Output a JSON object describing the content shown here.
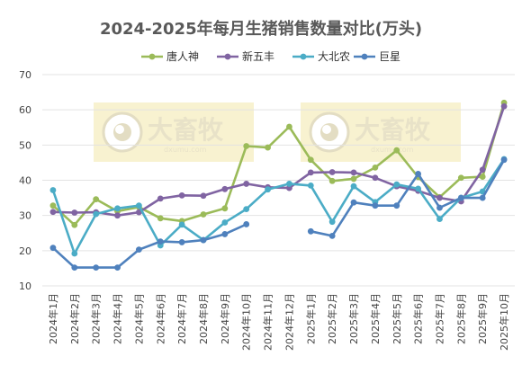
{
  "chart_data": {
    "type": "line",
    "title": "2024-2025年每月生猪销售数量对比(万头)",
    "categories": [
      "2024年1月",
      "2024年2月",
      "2024年3月",
      "2024年4月",
      "2024年5月",
      "2024年6月",
      "2024年7月",
      "2024年8月",
      "2024年9月",
      "2024年10月",
      "2024年11月",
      "2024年12月",
      "2025年1月",
      "2025年2月",
      "2025年3月",
      "2025年4月",
      "2025年5月",
      "2025年6月",
      "2025年7月",
      "2025年8月",
      "2025年9月",
      "2025年10月"
    ],
    "ylim": [
      10,
      70
    ],
    "yticks": [
      10,
      20,
      30,
      40,
      50,
      60,
      70
    ],
    "grid": true,
    "legend_position": "top",
    "series": [
      {
        "name": "唐人神",
        "color": "#9bbb59",
        "values": [
          32.8,
          27.3,
          34.6,
          31.2,
          32.4,
          29.2,
          28.4,
          30.3,
          32.0,
          49.7,
          49.3,
          55.2,
          45.8,
          39.8,
          40.4,
          43.6,
          48.5,
          40.9,
          35.2,
          40.7,
          41.0,
          62.0
        ]
      },
      {
        "name": "新五丰",
        "color": "#8064a2",
        "values": [
          31.0,
          30.8,
          30.9,
          30.0,
          30.9,
          34.8,
          35.7,
          35.6,
          37.5,
          39.0,
          38.0,
          37.8,
          42.2,
          42.3,
          42.2,
          40.7,
          38.3,
          37.0,
          35.0,
          34.0,
          43.0,
          61.0
        ]
      },
      {
        "name": "大北农",
        "color": "#4bacc6",
        "values": [
          37.2,
          19.2,
          30.4,
          32.0,
          32.8,
          21.5,
          27.4,
          23.0,
          28.0,
          31.8,
          37.4,
          39.0,
          38.5,
          28.2,
          38.3,
          33.8,
          38.8,
          37.6,
          29.0,
          35.0,
          36.8,
          46.0
        ]
      },
      {
        "name": "巨星",
        "color": "#4f81bd",
        "values": [
          20.8,
          15.2,
          15.2,
          15.2,
          20.3,
          22.6,
          22.4,
          23.0,
          24.7,
          27.5,
          null,
          null,
          25.5,
          24.2,
          33.7,
          32.8,
          32.8,
          41.8,
          32.2,
          35.0,
          35.0,
          45.8
        ]
      }
    ]
  },
  "watermark": {
    "brand": "大畜牧",
    "url": "dxumu.com"
  }
}
